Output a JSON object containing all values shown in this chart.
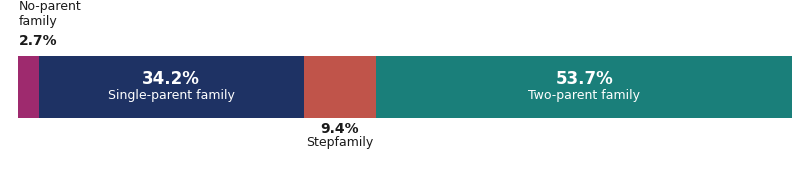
{
  "segments": [
    {
      "label": "No-parent\nfamily",
      "value": 2.7,
      "color": "#9e2a6e",
      "inner_label": null,
      "inner_sublabel": null,
      "outside_above": true
    },
    {
      "label": "Single-parent family",
      "value": 34.2,
      "color": "#1e3264",
      "inner_label": "34.2%",
      "inner_sublabel": "Single-parent family",
      "outside_above": false
    },
    {
      "label": "Stepfamily",
      "value": 9.4,
      "color": "#c0544a",
      "inner_label": null,
      "inner_sublabel": null,
      "outside_above": false
    },
    {
      "label": "Two-parent family",
      "value": 53.7,
      "color": "#1a7f7a",
      "inner_label": "53.7%",
      "inner_sublabel": "Two-parent family",
      "outside_above": false
    }
  ],
  "background_color": "#ffffff",
  "inner_text_color": "#ffffff",
  "outer_text_color": "#1a1a1a",
  "inner_fontsize_pct": 12,
  "inner_fontsize_label": 9,
  "outer_fontsize_pct": 10,
  "outer_fontsize_label": 9,
  "no_parent_label": "No-parent\nfamily",
  "no_parent_pct": "2.7%",
  "stepfamily_pct": "9.4%",
  "stepfamily_label": "Stepfamily"
}
